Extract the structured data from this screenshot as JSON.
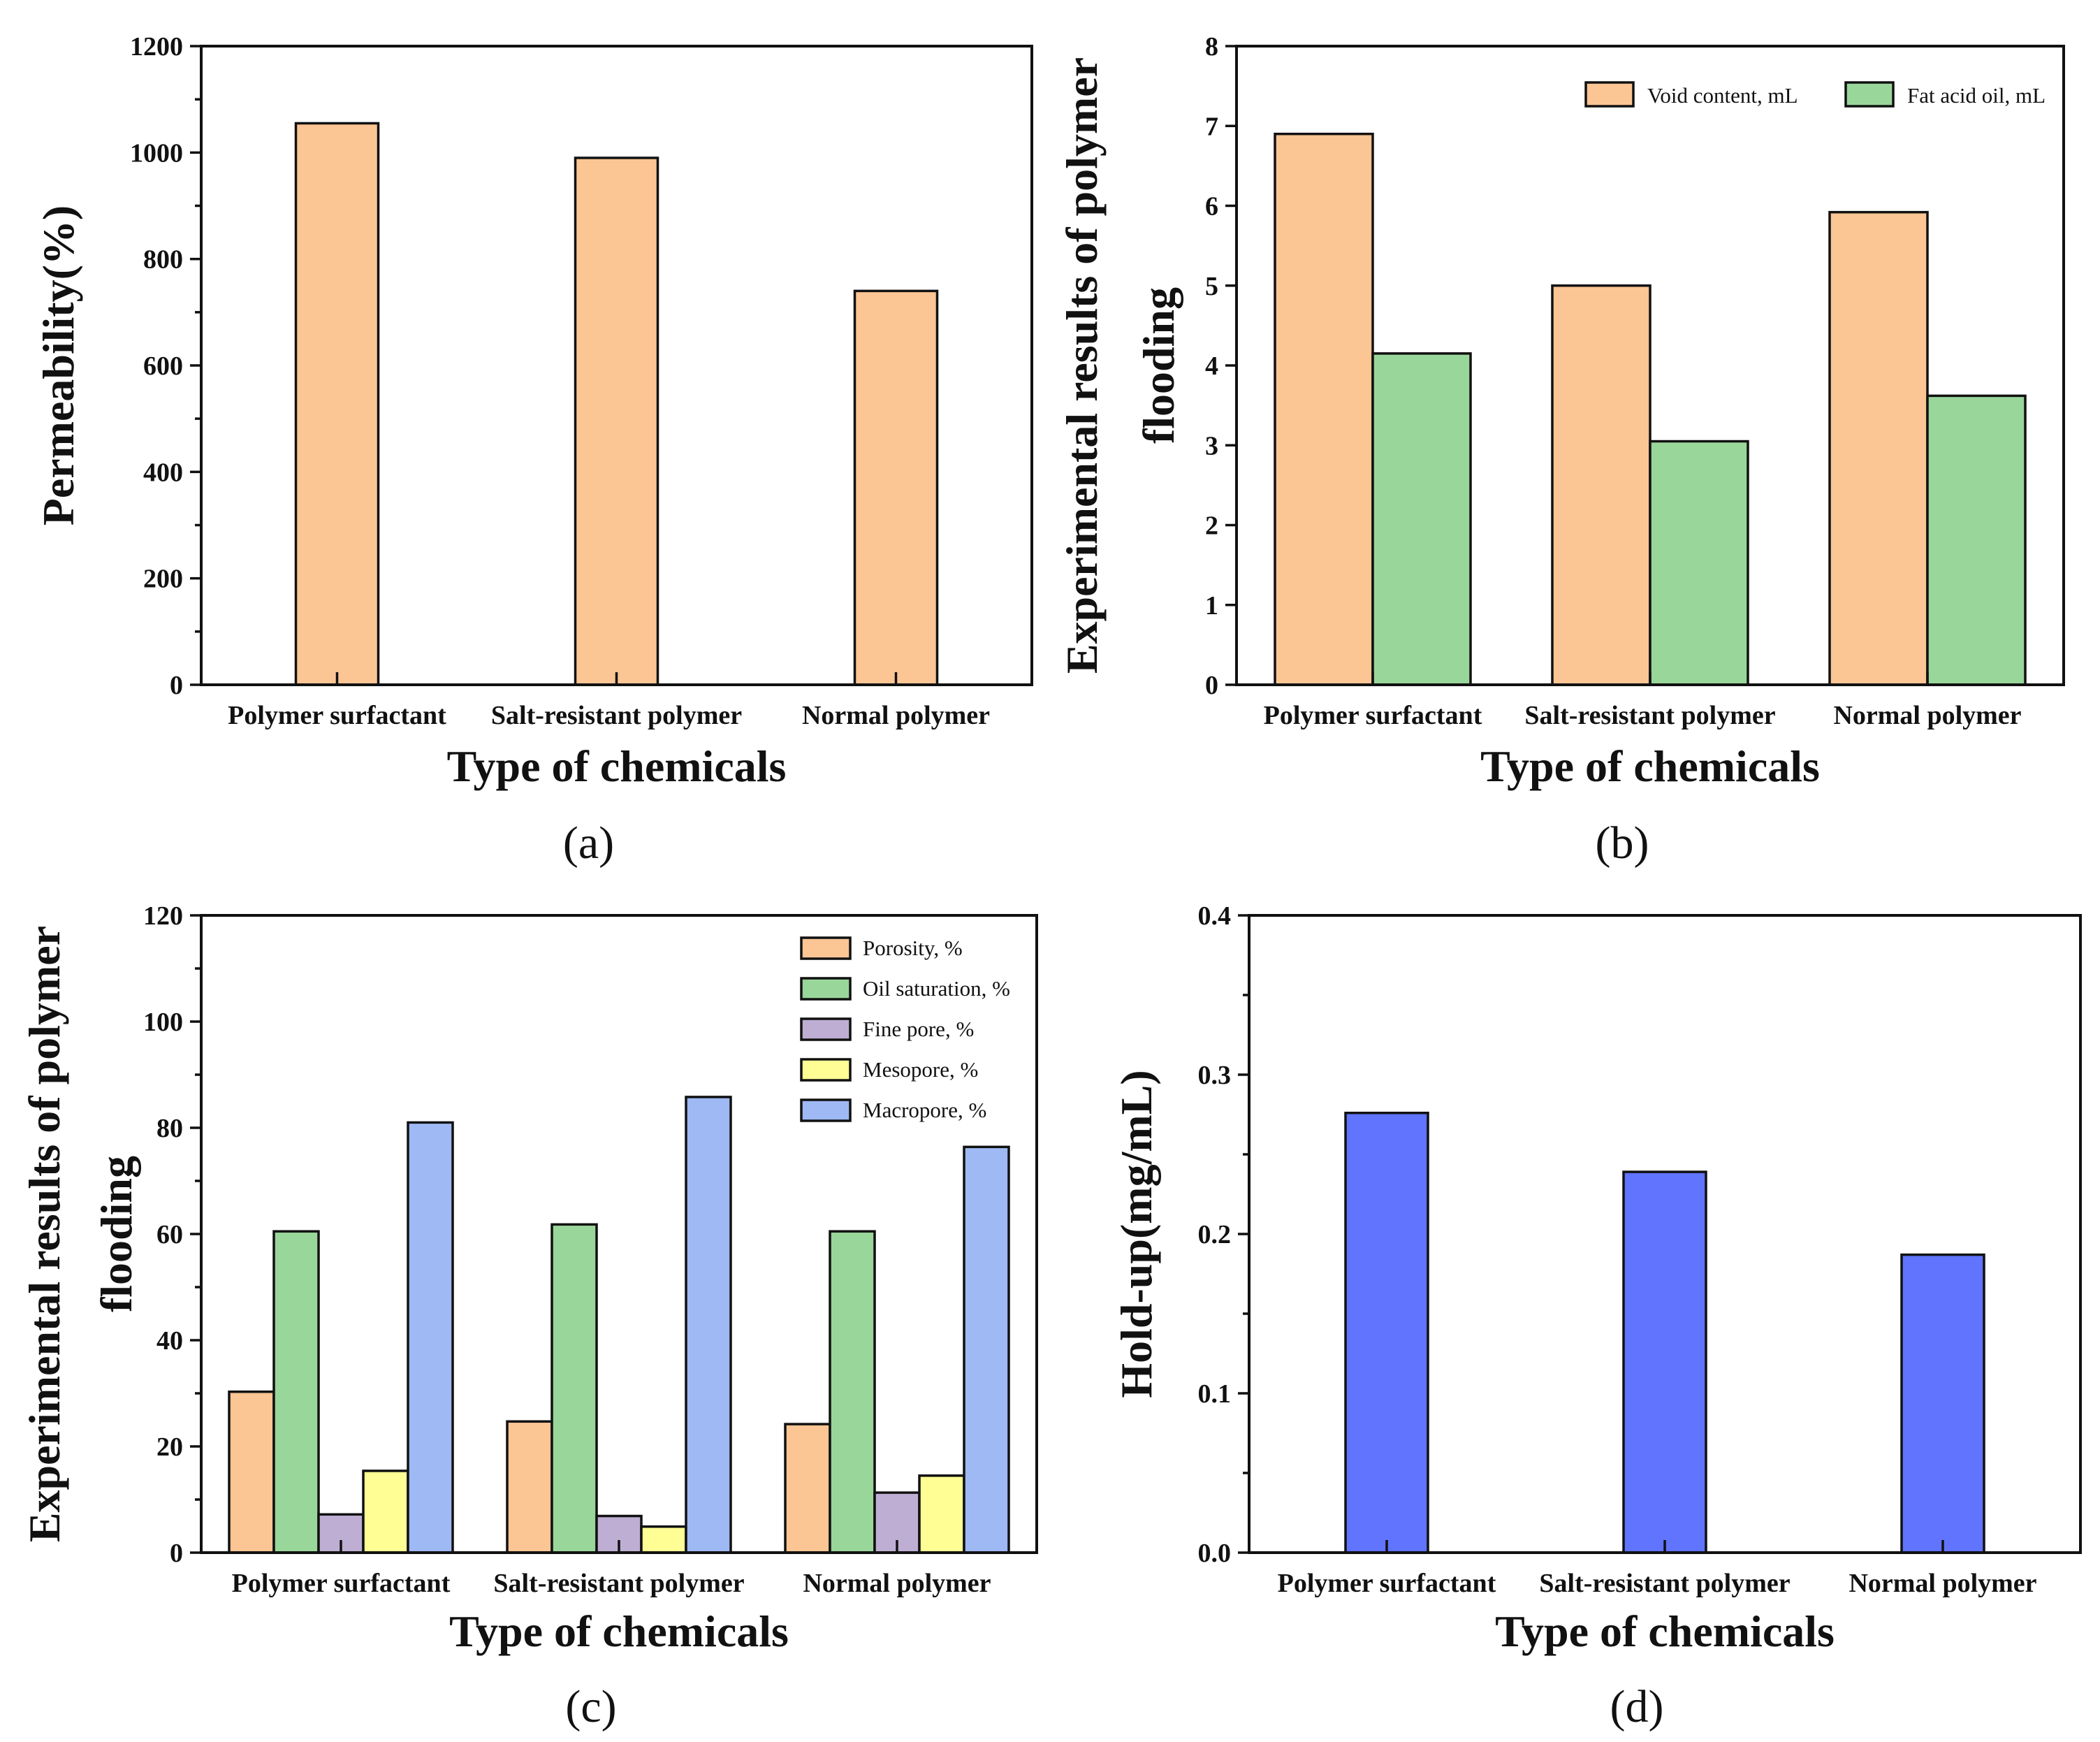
{
  "chart_data": [
    {
      "id": "a",
      "panel_label": "(a)",
      "type": "bar",
      "title": "",
      "xlabel": "Type of chemicals",
      "ylabel": "Permeability(%)",
      "categories": [
        "Polymer surfactant",
        "Salt-resistant polymer",
        "Normal polymer"
      ],
      "series": [
        {
          "name": "Permeability",
          "color": "#fbc594",
          "values": [
            1055,
            990,
            740
          ]
        }
      ],
      "ylim": [
        0,
        1200
      ],
      "yticks": [
        0,
        200,
        400,
        600,
        800,
        1000,
        1200
      ],
      "ytick_labels": [
        "0",
        "200",
        "400",
        "600",
        "800",
        "1000",
        "1200"
      ],
      "legend": null
    },
    {
      "id": "b",
      "panel_label": "(b)",
      "type": "bar",
      "title": "",
      "xlabel": "Type of chemicals",
      "ylabel": "Experimental results of polymer flooding",
      "ylabel_lines": [
        "Experimental results of polymer",
        "flooding"
      ],
      "categories": [
        "Polymer surfactant",
        "Salt-resistant polymer",
        "Normal polymer"
      ],
      "series": [
        {
          "name": "Void content, mL",
          "color": "#fbc594",
          "values": [
            6.9,
            5.0,
            5.92
          ]
        },
        {
          "name": "Fat acid oil, mL",
          "color": "#99d69a",
          "values": [
            4.15,
            3.05,
            3.62
          ]
        }
      ],
      "ylim": [
        0,
        8
      ],
      "yticks": [
        0,
        1,
        2,
        3,
        4,
        5,
        6,
        7,
        8
      ],
      "ytick_labels": [
        "0",
        "1",
        "2",
        "3",
        "4",
        "5",
        "6",
        "7",
        "8"
      ],
      "legend": "top-right"
    },
    {
      "id": "c",
      "panel_label": "(c)",
      "type": "bar",
      "title": "",
      "xlabel": "Type of chemicals",
      "ylabel": "Experimental results of polymer flooding",
      "ylabel_lines": [
        "Experimental results of polymer",
        "flooding"
      ],
      "categories": [
        "Polymer surfactant",
        "Salt-resistant polymer",
        "Normal polymer"
      ],
      "series": [
        {
          "name": "Porosity, %",
          "color": "#fbc594",
          "values": [
            30.3,
            24.7,
            24.2
          ]
        },
        {
          "name": "Oil saturation, %",
          "color": "#99d69a",
          "values": [
            60.5,
            61.8,
            60.5
          ]
        },
        {
          "name": "Fine pore, %",
          "color": "#bfaed3",
          "values": [
            7.2,
            6.9,
            11.3
          ]
        },
        {
          "name": "Mesopore, %",
          "color": "#fefe94",
          "values": [
            15.4,
            4.9,
            14.5
          ]
        },
        {
          "name": "Macropore, %",
          "color": "#9fb9f4",
          "values": [
            81.0,
            85.8,
            76.4
          ]
        }
      ],
      "ylim": [
        0,
        120
      ],
      "yticks": [
        0,
        20,
        40,
        60,
        80,
        100,
        120
      ],
      "ytick_labels": [
        "0",
        "20",
        "40",
        "60",
        "80",
        "100",
        "120"
      ],
      "legend": "top-right"
    },
    {
      "id": "d",
      "panel_label": "(d)",
      "type": "bar",
      "title": "",
      "xlabel": "Type of chemicals",
      "ylabel": "Hold-up(mg/mL)",
      "categories": [
        "Polymer surfactant",
        "Salt-resistant polymer",
        "Normal polymer"
      ],
      "series": [
        {
          "name": "Hold-up",
          "color": "#6074fd",
          "values": [
            0.276,
            0.239,
            0.187
          ]
        }
      ],
      "ylim": [
        0,
        0.4
      ],
      "yticks": [
        0,
        0.1,
        0.2,
        0.3,
        0.4
      ],
      "ytick_labels": [
        "0.0",
        "0.1",
        "0.2",
        "0.3",
        "0.4"
      ],
      "legend": null
    }
  ]
}
